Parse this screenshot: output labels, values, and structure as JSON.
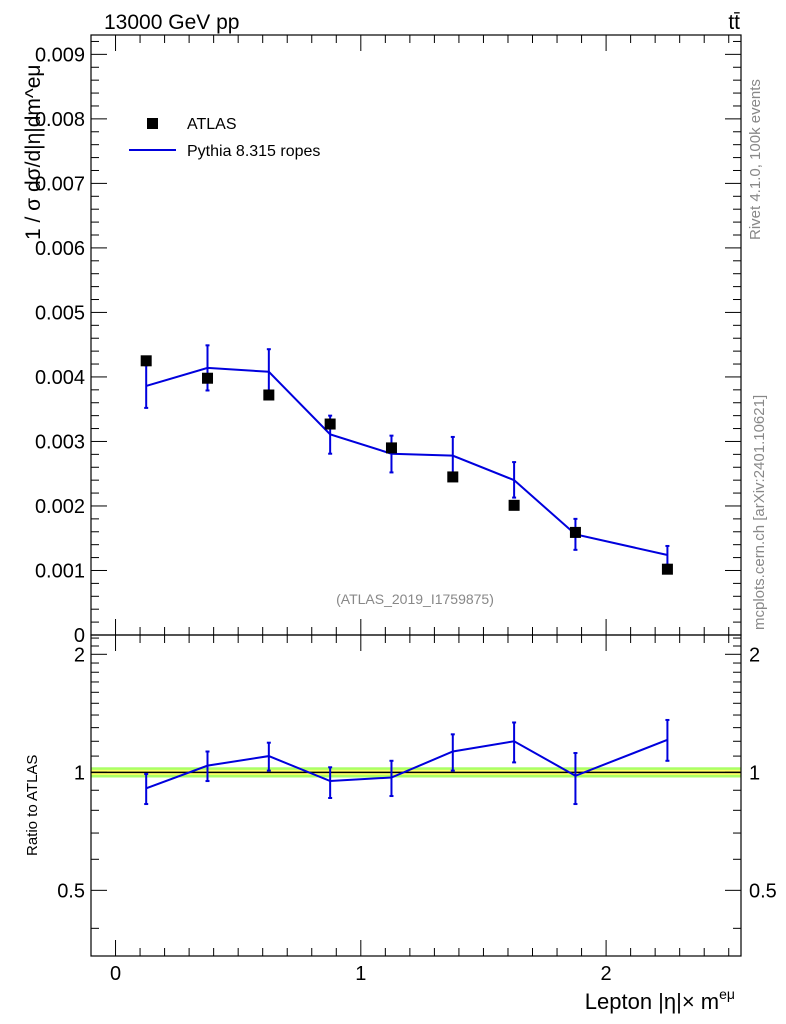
{
  "header": {
    "energy_label": "13000 GeV pp",
    "process_label": "tt̄"
  },
  "side_labels": {
    "rivet": "Rivet 4.1.0,  100k events",
    "mcplots": "mcplots.cern.ch [arXiv:2401.10621]"
  },
  "analysis_id": "(ATLAS_2019_I1759875)",
  "legend": {
    "data_label": "ATLAS",
    "mc_label": "Pythia 8.315 ropes"
  },
  "colors": {
    "data": "#000000",
    "mc": "#0000dd",
    "band_inner": "#ffff66",
    "band_outer": "#aaff66"
  },
  "chart_data": [
    {
      "type": "scatter",
      "panel": "main",
      "ylabel": "1 / σ dσ/d|η|dm^eμ",
      "ylim": [
        0,
        0.0093
      ],
      "yticks": [
        {
          "v": 0.009,
          "t": "0.009"
        },
        {
          "v": 0.008,
          "t": "0.008"
        },
        {
          "v": 0.007,
          "t": "0.007"
        },
        {
          "v": 0.006,
          "t": "0.006"
        },
        {
          "v": 0.005,
          "t": "0.005"
        },
        {
          "v": 0.004,
          "t": "0.004"
        },
        {
          "v": 0.003,
          "t": "0.003"
        },
        {
          "v": 0.002,
          "t": "0.002"
        },
        {
          "v": 0.001,
          "t": "0.001"
        },
        {
          "v": 0,
          "t": "0"
        }
      ],
      "x": [
        0.125,
        0.375,
        0.625,
        0.875,
        1.125,
        1.375,
        1.625,
        1.875,
        2.25
      ],
      "series": [
        {
          "name": "ATLAS",
          "values": [
            0.00425,
            0.00398,
            0.00372,
            0.00327,
            0.0029,
            0.00245,
            0.00201,
            0.00159,
            0.00102
          ]
        },
        {
          "name": "Pythia 8.315 ropes",
          "values": [
            0.00386,
            0.00414,
            0.00408,
            0.00311,
            0.00281,
            0.00278,
            0.0024,
            0.00156,
            0.00124
          ],
          "err_lo": [
            0.00352,
            0.00379,
            0.00375,
            0.00281,
            0.00252,
            0.00248,
            0.00213,
            0.00132,
            0.00109
          ],
          "err_hi": [
            0.00418,
            0.00449,
            0.00443,
            0.0034,
            0.00309,
            0.00307,
            0.00268,
            0.0018,
            0.00138
          ]
        }
      ]
    },
    {
      "type": "line",
      "panel": "ratio",
      "ylabel": "Ratio to ATLAS",
      "xlabel": "Lepton |η|× m^eμ",
      "xlim": [
        -0.1,
        2.55
      ],
      "ylim": [
        0.34,
        2.24
      ],
      "yticks": [
        {
          "v": 2,
          "t": "2"
        },
        {
          "v": 1,
          "t": "1"
        },
        {
          "v": 0.5,
          "t": "0.5"
        }
      ],
      "xticks": [
        {
          "v": 0,
          "t": "0"
        },
        {
          "v": 1,
          "t": "1"
        },
        {
          "v": 2,
          "t": "2"
        }
      ],
      "x": [
        0.125,
        0.375,
        0.625,
        0.875,
        1.125,
        1.375,
        1.625,
        1.875,
        2.25
      ],
      "values": [
        0.91,
        1.04,
        1.1,
        0.95,
        0.97,
        1.13,
        1.2,
        0.98,
        1.21
      ],
      "err_lo": [
        0.83,
        0.95,
        1.01,
        0.86,
        0.87,
        1.01,
        1.06,
        0.83,
        1.07
      ],
      "err_hi": [
        0.99,
        1.13,
        1.19,
        1.03,
        1.07,
        1.25,
        1.34,
        1.12,
        1.36
      ],
      "reference": 1
    }
  ]
}
